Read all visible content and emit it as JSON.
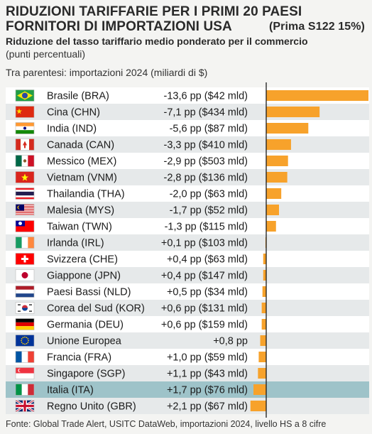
{
  "title_line1": "RIDUZIONI TARIFFARIE PER I PRIMI 20 PAESI",
  "title_line2": "FORNITORI DI IMPORTAZIONI USA",
  "title_note": "(Prima S122 15%)",
  "subtitle": "Riduzione del tasso tariffario medio ponderato per il commercio",
  "subtitle_unit": "(punti percentuali)",
  "parenthetical_note": "Tra parentesi: importazioni 2024 (miliardi di $)",
  "source": "Fonte: Global Trade Alert, USITC DataWeb, importazioni 2024, livello HS a 8 cifre",
  "colors": {
    "bar": "#f7a22b",
    "row_odd": "#ffffff",
    "row_even": "#e6e9ea",
    "highlight": "#9ec3c9",
    "axis": "#1a1a1a"
  },
  "chart_data": {
    "type": "bar",
    "orientation": "horizontal",
    "categories": [
      "Brasile (BRA)",
      "Cina (CHN)",
      "India (IND)",
      "Canada (CAN)",
      "Messico (MEX)",
      "Vietnam (VNM)",
      "Thailandia (THA)",
      "Malesia (MYS)",
      "Taiwan (TWN)",
      "Irlanda (IRL)",
      "Svizzera (CHE)",
      "Giappone (JPN)",
      "Paesi Bassi (NLD)",
      "Corea del Sud (KOR)",
      "Germania (DEU)",
      "Unione Europea",
      "Francia (FRA)",
      "Singapore (SGP)",
      "Italia (ITA)",
      "Regno Unito (GBR)"
    ],
    "flags": [
      "flag-brazil-icon",
      "flag-china-icon",
      "flag-india-icon",
      "flag-canada-icon",
      "flag-mexico-icon",
      "flag-vietnam-icon",
      "flag-thailand-icon",
      "flag-malaysia-icon",
      "flag-taiwan-icon",
      "flag-ireland-icon",
      "flag-switzerland-icon",
      "flag-japan-icon",
      "flag-netherlands-icon",
      "flag-south-korea-icon",
      "flag-germany-icon",
      "flag-eu-icon",
      "flag-france-icon",
      "flag-singapore-icon",
      "flag-italy-icon",
      "flag-uk-icon"
    ],
    "values": [
      -13.6,
      -7.1,
      -5.6,
      -3.3,
      -2.9,
      -2.8,
      -2.0,
      -1.7,
      -1.3,
      0.1,
      0.4,
      0.4,
      0.5,
      0.6,
      0.6,
      0.8,
      1.0,
      1.1,
      1.7,
      2.1
    ],
    "value_labels": [
      "-13,6 pp ($42 mld)",
      "-7,1 pp ($434 mld)",
      "-5,6 pp ($87 mld)",
      "-3,3 pp ($410 mld)",
      "-2,9 pp ($503 mld)",
      "-2,8 pp ($136 mld)",
      "-2,0 pp ($63 mld)",
      "-1,7 pp ($52 mld)",
      "-1,3 pp ($115 mld)",
      "+0,1 pp ($103 mld)",
      "+0,4 pp ($63 mld)",
      "+0,4 pp ($147 mld)",
      "+0,5 pp ($34 mld)",
      "+0,6 pp ($131 mld)",
      "+0,6 pp ($159 mld)",
      "+0,8 pp",
      "+1,0 pp ($59 mld)",
      "+1,1 pp ($43 mld)",
      "+1,7 pp ($76 mld)",
      "+2,1 pp ($67 mld)"
    ],
    "highlight_category": "Italia (ITA)",
    "note": "Bars extend right for reductions, left for increases, from a zero axis"
  }
}
